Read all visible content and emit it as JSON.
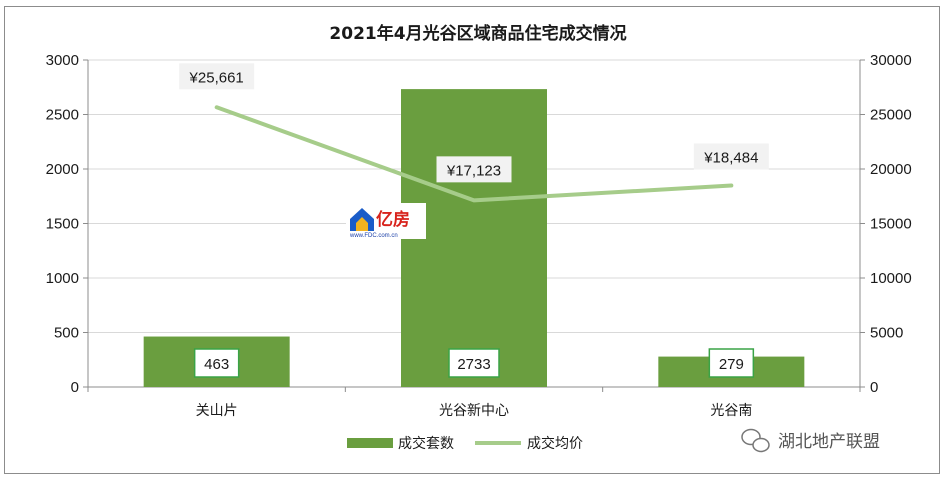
{
  "chart_data": {
    "type": "bar+line",
    "title": "2021年4月光谷区域商品住宅成交情况",
    "categories": [
      "关山片",
      "光谷新中心",
      "光谷南"
    ],
    "series": [
      {
        "name": "成交套数",
        "type": "bar",
        "axis": "left",
        "values": [
          463,
          2733,
          279
        ],
        "labels": [
          "463",
          "2733",
          "279"
        ],
        "color": "#6a9e3f"
      },
      {
        "name": "成交均价",
        "type": "line",
        "axis": "right",
        "values": [
          25661,
          17123,
          18484
        ],
        "labels": [
          "¥25,661",
          "¥17,123",
          "¥18,484"
        ],
        "color": "#a6cc8a"
      }
    ],
    "y_left": {
      "min": 0,
      "max": 3000,
      "ticks": [
        "0",
        "500",
        "1000",
        "1500",
        "2000",
        "2500",
        "3000"
      ]
    },
    "y_right": {
      "min": 0,
      "max": 30000,
      "ticks": [
        "0",
        "5000",
        "10000",
        "15000",
        "20000",
        "25000",
        "30000"
      ]
    },
    "grid": true,
    "legend_position": "bottom"
  },
  "watermark": {
    "logo_text": "亿房",
    "logo_sub": "www.FDC.com.cn",
    "account": "湖北地产联盟"
  }
}
